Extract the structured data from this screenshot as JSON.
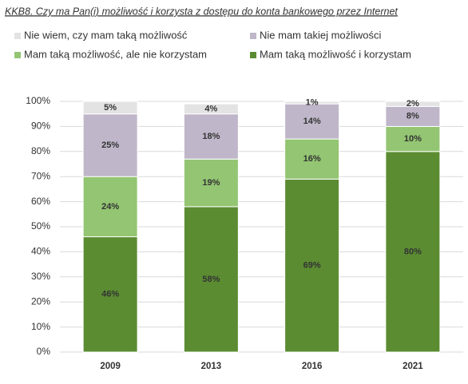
{
  "chart_data": {
    "type": "stacked_bar",
    "title": "KKB8. Czy ma Pan(i) możliwość i korzysta z dostępu do konta bankowego przez Internet",
    "categories": [
      "2009",
      "2013",
      "2016",
      "2021"
    ],
    "series": [
      {
        "name": "Mam taką możliwość i korzystam",
        "color": "#5b8c32",
        "values": [
          46,
          58,
          69,
          80
        ],
        "value_labels": [
          "46%",
          "58%",
          "69%",
          "80%"
        ]
      },
      {
        "name": "Mam taką możliwość, ale nie korzystam",
        "color": "#93c572",
        "values": [
          24,
          19,
          16,
          10
        ],
        "value_labels": [
          "24%",
          "19%",
          "16%",
          "10%"
        ]
      },
      {
        "name": "Nie mam takiej możliwości",
        "color": "#bfb6c9",
        "values": [
          25,
          18,
          14,
          8
        ],
        "value_labels": [
          "25%",
          "18%",
          "14%",
          "8%"
        ]
      },
      {
        "name": "Nie wiem, czy mam taką możliwość",
        "color": "#e4e3e3",
        "values": [
          5,
          4,
          1,
          2
        ],
        "value_labels": [
          "5%",
          "4%",
          "1%",
          "2%"
        ]
      }
    ],
    "ylim": [
      0,
      100
    ],
    "yticks": [
      {
        "value": 0,
        "label": "0%"
      },
      {
        "value": 10,
        "label": "10%"
      },
      {
        "value": 20,
        "label": "20%"
      },
      {
        "value": 30,
        "label": "30%"
      },
      {
        "value": 40,
        "label": "40%"
      },
      {
        "value": 50,
        "label": "50%"
      },
      {
        "value": 60,
        "label": "60%"
      },
      {
        "value": 70,
        "label": "70%"
      },
      {
        "value": 80,
        "label": "80%"
      },
      {
        "value": 90,
        "label": "90%"
      },
      {
        "value": 100,
        "label": "100%"
      }
    ],
    "grid": true
  }
}
